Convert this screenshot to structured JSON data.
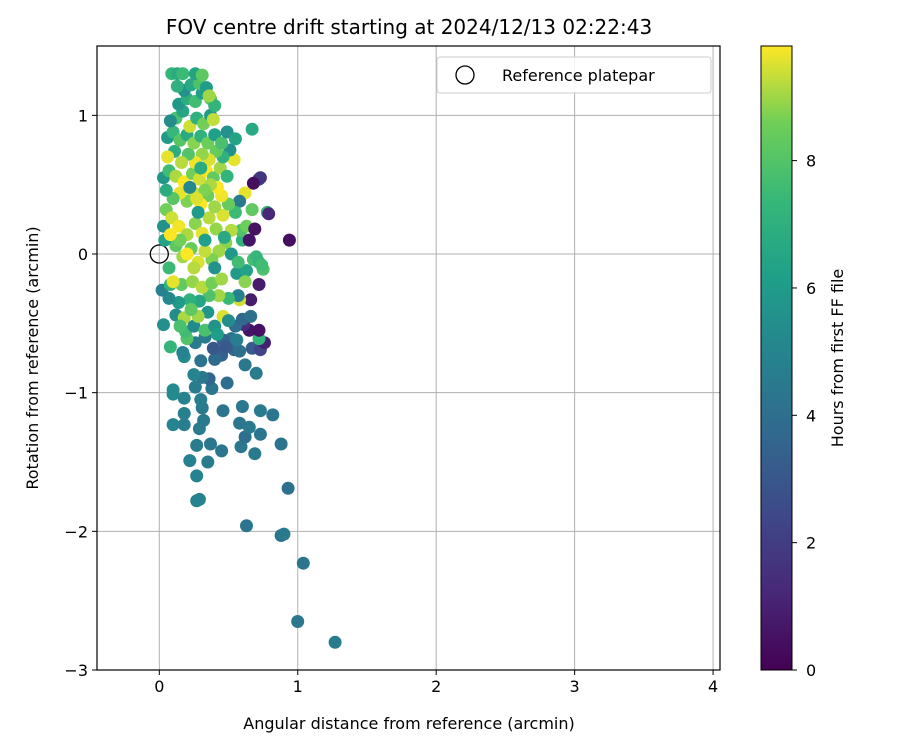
{
  "chart_data": {
    "type": "scatter",
    "title": "FOV centre drift starting at 2024/12/13 02:22:43",
    "xlabel": "Angular distance from reference (arcmin)",
    "ylabel": "Rotation from reference (arcmin)",
    "xlim": [
      -0.45,
      4.05
    ],
    "ylim": [
      -3.0,
      1.5
    ],
    "xticks": [
      0,
      1,
      2,
      3,
      4
    ],
    "yticks": [
      -3,
      -2,
      -1,
      0,
      1
    ],
    "grid": true,
    "colormap": "viridis",
    "legend": {
      "label": "Reference platepar",
      "placement": "top-right",
      "marker": "open-circle",
      "x": 0.0,
      "y": 0.0
    },
    "colorbar": {
      "label": "Hours from first FF file",
      "range": [
        0,
        9.8
      ],
      "ticks": [
        0,
        2,
        4,
        6,
        8
      ]
    },
    "points": [
      {
        "x": 1.27,
        "y": -2.8,
        "c": 4.6
      },
      {
        "x": 1.0,
        "y": -2.65,
        "c": 4.4
      },
      {
        "x": 1.04,
        "y": -2.23,
        "c": 4.3
      },
      {
        "x": 0.88,
        "y": -2.03,
        "c": 4.2
      },
      {
        "x": 0.9,
        "y": -2.02,
        "c": 4.5
      },
      {
        "x": 0.63,
        "y": -1.96,
        "c": 4.3
      },
      {
        "x": 0.93,
        "y": -1.69,
        "c": 4.1
      },
      {
        "x": 0.27,
        "y": -1.78,
        "c": 4.8
      },
      {
        "x": 0.29,
        "y": -1.77,
        "c": 4.9
      },
      {
        "x": 0.22,
        "y": -1.49,
        "c": 4.9
      },
      {
        "x": 0.27,
        "y": -1.6,
        "c": 4.9
      },
      {
        "x": 0.35,
        "y": -1.5,
        "c": 4.6
      },
      {
        "x": 0.69,
        "y": -1.44,
        "c": 4.5
      },
      {
        "x": 0.59,
        "y": -1.39,
        "c": 4.4
      },
      {
        "x": 0.45,
        "y": -1.42,
        "c": 4.3
      },
      {
        "x": 0.27,
        "y": -1.38,
        "c": 4.6
      },
      {
        "x": 0.37,
        "y": -1.37,
        "c": 4.4
      },
      {
        "x": 0.88,
        "y": -1.37,
        "c": 4.2
      },
      {
        "x": 0.62,
        "y": -1.32,
        "c": 4.0
      },
      {
        "x": 0.73,
        "y": -1.3,
        "c": 4.3
      },
      {
        "x": 0.65,
        "y": -1.25,
        "c": 4.5
      },
      {
        "x": 0.29,
        "y": -1.26,
        "c": 4.6
      },
      {
        "x": 0.18,
        "y": -1.23,
        "c": 4.7
      },
      {
        "x": 0.1,
        "y": -1.23,
        "c": 5.0
      },
      {
        "x": 0.58,
        "y": -1.22,
        "c": 4.4
      },
      {
        "x": 0.32,
        "y": -1.2,
        "c": 4.5
      },
      {
        "x": 0.18,
        "y": -1.15,
        "c": 4.8
      },
      {
        "x": 0.46,
        "y": -1.13,
        "c": 4.2
      },
      {
        "x": 0.6,
        "y": -1.1,
        "c": 4.4
      },
      {
        "x": 0.73,
        "y": -1.13,
        "c": 4.6
      },
      {
        "x": 0.82,
        "y": -1.16,
        "c": 4.3
      },
      {
        "x": 0.31,
        "y": -1.11,
        "c": 4.5
      },
      {
        "x": 0.18,
        "y": -1.04,
        "c": 4.9
      },
      {
        "x": 0.1,
        "y": -1.01,
        "c": 5.2
      },
      {
        "x": 0.1,
        "y": -0.98,
        "c": 5.3
      },
      {
        "x": 0.3,
        "y": -1.05,
        "c": 4.7
      },
      {
        "x": 0.38,
        "y": -0.97,
        "c": 4.3
      },
      {
        "x": 0.26,
        "y": -0.96,
        "c": 4.6
      },
      {
        "x": 0.49,
        "y": -0.93,
        "c": 3.9
      },
      {
        "x": 0.36,
        "y": -0.9,
        "c": 3.6
      },
      {
        "x": 0.31,
        "y": -0.89,
        "c": 4.4
      },
      {
        "x": 0.25,
        "y": -0.87,
        "c": 5.0
      },
      {
        "x": 0.7,
        "y": -0.86,
        "c": 4.6
      },
      {
        "x": 0.62,
        "y": -0.8,
        "c": 4.4
      },
      {
        "x": 0.45,
        "y": -0.73,
        "c": 3.3
      },
      {
        "x": 0.4,
        "y": -0.76,
        "c": 3.8
      },
      {
        "x": 0.3,
        "y": -0.77,
        "c": 4.2
      },
      {
        "x": 0.18,
        "y": -0.74,
        "c": 5.4
      },
      {
        "x": 0.17,
        "y": -0.71,
        "c": 4.9
      },
      {
        "x": 0.54,
        "y": -0.69,
        "c": 3.6
      },
      {
        "x": 0.58,
        "y": -0.7,
        "c": 4.0
      },
      {
        "x": 0.67,
        "y": -0.68,
        "c": 3.2
      },
      {
        "x": 0.73,
        "y": -0.69,
        "c": 2.3
      },
      {
        "x": 0.76,
        "y": -0.64,
        "c": 1.0
      },
      {
        "x": 0.72,
        "y": -0.61,
        "c": 7.2
      },
      {
        "x": 0.65,
        "y": -0.55,
        "c": 0.6
      },
      {
        "x": 0.72,
        "y": -0.55,
        "c": 0.5
      },
      {
        "x": 0.61,
        "y": -0.51,
        "c": 1.4
      },
      {
        "x": 0.52,
        "y": -0.61,
        "c": 4.2
      },
      {
        "x": 0.46,
        "y": -0.62,
        "c": 3.5
      },
      {
        "x": 0.39,
        "y": -0.68,
        "c": 3.0
      },
      {
        "x": 0.33,
        "y": -0.6,
        "c": 4.5
      },
      {
        "x": 0.26,
        "y": -0.64,
        "c": 4.6
      },
      {
        "x": 0.2,
        "y": -0.61,
        "c": 8.0
      },
      {
        "x": 0.19,
        "y": -0.56,
        "c": 7.6
      },
      {
        "x": 0.08,
        "y": -0.67,
        "c": 7.3
      },
      {
        "x": 0.03,
        "y": -0.51,
        "c": 5.5
      },
      {
        "x": 0.12,
        "y": -0.44,
        "c": 5.4
      },
      {
        "x": 0.18,
        "y": -0.46,
        "c": 9.1
      },
      {
        "x": 0.25,
        "y": -0.52,
        "c": 5.3
      },
      {
        "x": 0.33,
        "y": -0.55,
        "c": 7.8
      },
      {
        "x": 0.4,
        "y": -0.52,
        "c": 5.6
      },
      {
        "x": 0.46,
        "y": -0.45,
        "c": 9.5
      },
      {
        "x": 0.55,
        "y": -0.52,
        "c": 4.0
      },
      {
        "x": 0.6,
        "y": -0.47,
        "c": 3.7
      },
      {
        "x": 0.66,
        "y": -0.45,
        "c": 4.1
      },
      {
        "x": 0.66,
        "y": -0.33,
        "c": 0.9
      },
      {
        "x": 0.72,
        "y": -0.22,
        "c": 0.8
      },
      {
        "x": 0.58,
        "y": -0.33,
        "c": 9.4
      },
      {
        "x": 0.57,
        "y": -0.3,
        "c": 4.8
      },
      {
        "x": 0.5,
        "y": -0.32,
        "c": 7.4
      },
      {
        "x": 0.43,
        "y": -0.3,
        "c": 9.0
      },
      {
        "x": 0.36,
        "y": -0.3,
        "c": 7.9
      },
      {
        "x": 0.29,
        "y": -0.34,
        "c": 6.5
      },
      {
        "x": 0.22,
        "y": -0.33,
        "c": 7.0
      },
      {
        "x": 0.14,
        "y": -0.35,
        "c": 6.0
      },
      {
        "x": 0.07,
        "y": -0.32,
        "c": 5.2
      },
      {
        "x": 0.02,
        "y": -0.26,
        "c": 4.9
      },
      {
        "x": 0.08,
        "y": -0.22,
        "c": 7.1
      },
      {
        "x": 0.16,
        "y": -0.22,
        "c": 8.3
      },
      {
        "x": 0.24,
        "y": -0.2,
        "c": 8.9
      },
      {
        "x": 0.31,
        "y": -0.24,
        "c": 9.2
      },
      {
        "x": 0.38,
        "y": -0.21,
        "c": 8.6
      },
      {
        "x": 0.45,
        "y": -0.18,
        "c": 9.0
      },
      {
        "x": 0.56,
        "y": -0.14,
        "c": 5.9
      },
      {
        "x": 0.63,
        "y": -0.12,
        "c": 6.3
      },
      {
        "x": 0.68,
        "y": -0.04,
        "c": 7.8
      },
      {
        "x": 0.7,
        "y": -0.02,
        "c": 7.4
      },
      {
        "x": 0.72,
        "y": -0.06,
        "c": 7.2
      },
      {
        "x": 0.75,
        "y": -0.11,
        "c": 7.9
      },
      {
        "x": 0.74,
        "y": -0.08,
        "c": 7.6
      },
      {
        "x": 0.6,
        "y": 0.1,
        "c": 7.1
      },
      {
        "x": 0.59,
        "y": 0.17,
        "c": 7.9
      },
      {
        "x": 0.63,
        "y": 0.2,
        "c": 8.5
      },
      {
        "x": 0.65,
        "y": 0.1,
        "c": 0.6
      },
      {
        "x": 0.69,
        "y": 0.18,
        "c": 0.5
      },
      {
        "x": 0.94,
        "y": 0.1,
        "c": 0.4
      },
      {
        "x": 0.78,
        "y": 0.3,
        "c": 7.3
      },
      {
        "x": 0.79,
        "y": 0.29,
        "c": 1.2
      },
      {
        "x": 0.67,
        "y": 0.32,
        "c": 8.3
      },
      {
        "x": 0.72,
        "y": 0.54,
        "c": 2.3
      },
      {
        "x": 0.73,
        "y": 0.55,
        "c": 1.7
      },
      {
        "x": 0.68,
        "y": 0.51,
        "c": 0.4
      },
      {
        "x": 0.62,
        "y": 0.44,
        "c": 9.6
      },
      {
        "x": 0.58,
        "y": 0.38,
        "c": 4.5
      },
      {
        "x": 0.55,
        "y": 0.3,
        "c": 7.5
      },
      {
        "x": 0.52,
        "y": 0.17,
        "c": 9.2
      },
      {
        "x": 0.48,
        "y": 0.08,
        "c": 8.8
      },
      {
        "x": 0.43,
        "y": 0.02,
        "c": 9.0
      },
      {
        "x": 0.38,
        "y": -0.04,
        "c": 8.7
      },
      {
        "x": 0.33,
        "y": 0.02,
        "c": 9.3
      },
      {
        "x": 0.28,
        "y": -0.06,
        "c": 9.5
      },
      {
        "x": 0.23,
        "y": 0.04,
        "c": 8.4
      },
      {
        "x": 0.17,
        "y": -0.02,
        "c": 9.0
      },
      {
        "x": 0.12,
        "y": 0.06,
        "c": 8.2
      },
      {
        "x": 0.07,
        "y": -0.1,
        "c": 7.5
      },
      {
        "x": 0.04,
        "y": 0.1,
        "c": 6.3
      },
      {
        "x": 0.03,
        "y": 0.2,
        "c": 5.6
      },
      {
        "x": 0.05,
        "y": 0.32,
        "c": 8.6
      },
      {
        "x": 0.09,
        "y": 0.26,
        "c": 9.4
      },
      {
        "x": 0.14,
        "y": 0.2,
        "c": 9.7
      },
      {
        "x": 0.2,
        "y": 0.14,
        "c": 9.1
      },
      {
        "x": 0.26,
        "y": 0.22,
        "c": 8.8
      },
      {
        "x": 0.31,
        "y": 0.15,
        "c": 9.6
      },
      {
        "x": 0.36,
        "y": 0.26,
        "c": 9.2
      },
      {
        "x": 0.41,
        "y": 0.18,
        "c": 8.9
      },
      {
        "x": 0.46,
        "y": 0.28,
        "c": 9.5
      },
      {
        "x": 0.5,
        "y": 0.36,
        "c": 8.4
      },
      {
        "x": 0.45,
        "y": 0.42,
        "c": 9.7
      },
      {
        "x": 0.4,
        "y": 0.34,
        "c": 9.0
      },
      {
        "x": 0.35,
        "y": 0.42,
        "c": 8.5
      },
      {
        "x": 0.3,
        "y": 0.36,
        "c": 9.8
      },
      {
        "x": 0.25,
        "y": 0.44,
        "c": 9.3
      },
      {
        "x": 0.2,
        "y": 0.38,
        "c": 8.7
      },
      {
        "x": 0.15,
        "y": 0.44,
        "c": 9.6
      },
      {
        "x": 0.1,
        "y": 0.4,
        "c": 8.1
      },
      {
        "x": 0.05,
        "y": 0.46,
        "c": 6.8
      },
      {
        "x": 0.03,
        "y": 0.55,
        "c": 5.8
      },
      {
        "x": 0.07,
        "y": 0.6,
        "c": 7.6
      },
      {
        "x": 0.12,
        "y": 0.56,
        "c": 9.1
      },
      {
        "x": 0.18,
        "y": 0.52,
        "c": 9.8
      },
      {
        "x": 0.24,
        "y": 0.58,
        "c": 8.6
      },
      {
        "x": 0.29,
        "y": 0.54,
        "c": 9.4
      },
      {
        "x": 0.34,
        "y": 0.6,
        "c": 9.9
      },
      {
        "x": 0.39,
        "y": 0.55,
        "c": 8.3
      },
      {
        "x": 0.44,
        "y": 0.62,
        "c": 9.0
      },
      {
        "x": 0.49,
        "y": 0.56,
        "c": 7.2
      },
      {
        "x": 0.54,
        "y": 0.68,
        "c": 9.6
      },
      {
        "x": 0.51,
        "y": 0.75,
        "c": 5.5
      },
      {
        "x": 0.46,
        "y": 0.7,
        "c": 7.0
      },
      {
        "x": 0.41,
        "y": 0.74,
        "c": 8.4
      },
      {
        "x": 0.36,
        "y": 0.68,
        "c": 9.5
      },
      {
        "x": 0.31,
        "y": 0.72,
        "c": 8.9
      },
      {
        "x": 0.26,
        "y": 0.66,
        "c": 9.7
      },
      {
        "x": 0.21,
        "y": 0.72,
        "c": 8.0
      },
      {
        "x": 0.16,
        "y": 0.66,
        "c": 9.2
      },
      {
        "x": 0.11,
        "y": 0.74,
        "c": 6.9
      },
      {
        "x": 0.06,
        "y": 0.7,
        "c": 9.6
      },
      {
        "x": 0.06,
        "y": 0.84,
        "c": 5.9
      },
      {
        "x": 0.1,
        "y": 0.88,
        "c": 7.4
      },
      {
        "x": 0.15,
        "y": 0.82,
        "c": 8.1
      },
      {
        "x": 0.2,
        "y": 0.86,
        "c": 6.7
      },
      {
        "x": 0.25,
        "y": 0.8,
        "c": 8.8
      },
      {
        "x": 0.3,
        "y": 0.85,
        "c": 7.1
      },
      {
        "x": 0.35,
        "y": 0.8,
        "c": 8.5
      },
      {
        "x": 0.4,
        "y": 0.86,
        "c": 6.2
      },
      {
        "x": 0.45,
        "y": 0.8,
        "c": 7.8
      },
      {
        "x": 0.49,
        "y": 0.88,
        "c": 5.6
      },
      {
        "x": 0.55,
        "y": 0.83,
        "c": 6.4
      },
      {
        "x": 0.67,
        "y": 0.9,
        "c": 6.6
      },
      {
        "x": 0.22,
        "y": 0.92,
        "c": 9.4
      },
      {
        "x": 0.27,
        "y": 0.98,
        "c": 7.0
      },
      {
        "x": 0.32,
        "y": 0.94,
        "c": 8.6
      },
      {
        "x": 0.37,
        "y": 1.0,
        "c": 6.0
      },
      {
        "x": 0.12,
        "y": 0.98,
        "c": 7.8
      },
      {
        "x": 0.17,
        "y": 1.03,
        "c": 6.5
      },
      {
        "x": 0.08,
        "y": 0.96,
        "c": 5.4
      },
      {
        "x": 0.14,
        "y": 1.08,
        "c": 5.8
      },
      {
        "x": 0.2,
        "y": 1.12,
        "c": 6.9
      },
      {
        "x": 0.26,
        "y": 1.1,
        "c": 7.6
      },
      {
        "x": 0.31,
        "y": 1.16,
        "c": 6.2
      },
      {
        "x": 0.37,
        "y": 1.12,
        "c": 8.2
      },
      {
        "x": 0.4,
        "y": 1.07,
        "c": 7.2
      },
      {
        "x": 0.18,
        "y": 1.18,
        "c": 5.6
      },
      {
        "x": 0.23,
        "y": 1.22,
        "c": 6.6
      },
      {
        "x": 0.29,
        "y": 1.23,
        "c": 7.9
      },
      {
        "x": 0.34,
        "y": 1.2,
        "c": 6.1
      },
      {
        "x": 0.13,
        "y": 1.21,
        "c": 7.0
      },
      {
        "x": 0.09,
        "y": 1.3,
        "c": 7.3
      },
      {
        "x": 0.13,
        "y": 1.3,
        "c": 6.8
      },
      {
        "x": 0.17,
        "y": 1.3,
        "c": 7.5
      },
      {
        "x": 0.26,
        "y": 1.3,
        "c": 6.4
      },
      {
        "x": 0.31,
        "y": 1.29,
        "c": 8.2
      },
      {
        "x": 0.36,
        "y": 1.14,
        "c": 9.0
      },
      {
        "x": 0.39,
        "y": 0.97,
        "c": 9.3
      },
      {
        "x": 0.3,
        "y": 0.62,
        "c": 6.8
      },
      {
        "x": 0.22,
        "y": 0.48,
        "c": 5.2
      },
      {
        "x": 0.28,
        "y": 0.3,
        "c": 6.0
      },
      {
        "x": 0.33,
        "y": 0.1,
        "c": 6.2
      },
      {
        "x": 0.4,
        "y": -0.1,
        "c": 5.6
      },
      {
        "x": 0.47,
        "y": 0.12,
        "c": 6.6
      },
      {
        "x": 0.52,
        "y": 0.0,
        "c": 5.9
      },
      {
        "x": 0.57,
        "y": -0.06,
        "c": 7.6
      },
      {
        "x": 0.62,
        "y": -0.2,
        "c": 8.8
      },
      {
        "x": 0.35,
        "y": -0.42,
        "c": 5.8
      },
      {
        "x": 0.28,
        "y": -0.45,
        "c": 9.0
      },
      {
        "x": 0.23,
        "y": -0.4,
        "c": 8.3
      },
      {
        "x": 0.15,
        "y": -0.52,
        "c": 7.8
      },
      {
        "x": 0.42,
        "y": -0.58,
        "c": 6.1
      },
      {
        "x": 0.5,
        "y": -0.48,
        "c": 5.4
      },
      {
        "x": 0.56,
        "y": -0.62,
        "c": 4.7
      },
      {
        "x": 0.48,
        "y": -0.67,
        "c": 3.1
      },
      {
        "x": 0.2,
        "y": 0.0,
        "c": 9.9
      },
      {
        "x": 0.25,
        "y": -0.1,
        "c": 9.2
      },
      {
        "x": 0.15,
        "y": 0.1,
        "c": 8.6
      },
      {
        "x": 0.1,
        "y": -0.2,
        "c": 9.6
      },
      {
        "x": 0.08,
        "y": 0.14,
        "c": 9.8
      },
      {
        "x": 0.42,
        "y": 0.48,
        "c": 9.8
      },
      {
        "x": 0.37,
        "y": 0.5,
        "c": 9.1
      },
      {
        "x": 0.33,
        "y": 0.46,
        "c": 8.7
      },
      {
        "x": 0.27,
        "y": 0.4,
        "c": 9.5
      }
    ]
  }
}
